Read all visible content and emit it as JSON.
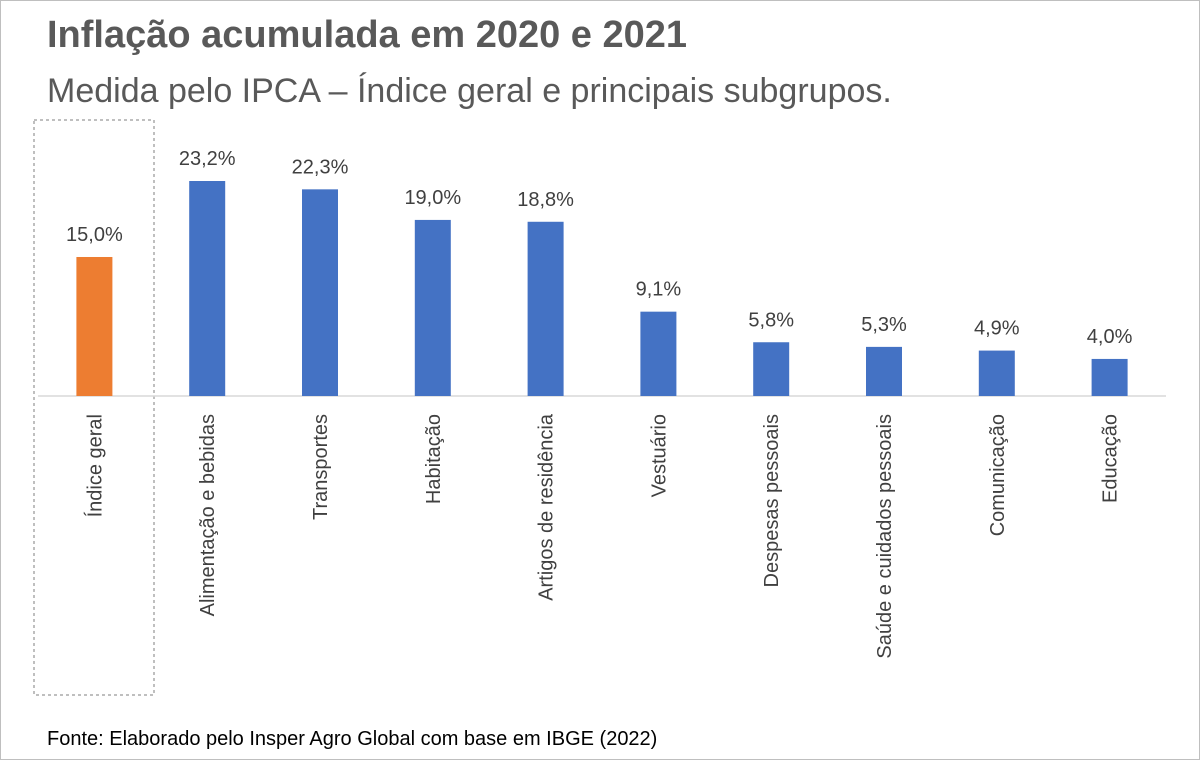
{
  "title": "Inflação acumulada em 2020 e 2021",
  "subtitle": "Medida pelo IPCA – Índice geral e principais subgrupos.",
  "source": "Fonte: Elaborado pelo Insper Agro Global com base em IBGE (2022)",
  "colors": {
    "highlight": "#ED7D31",
    "bar": "#4472C4",
    "axis": "#d9d9d9",
    "highlight_box": "#bfbfbf"
  },
  "chart_data": {
    "type": "bar",
    "categories": [
      "Índice geral",
      "Alimentação e bebidas",
      "Transportes",
      "Habitação",
      "Artigos de residência",
      "Vestuário",
      "Despesas pessoais",
      "Saúde e cuidados pessoais",
      "Comunicação",
      "Educação"
    ],
    "values": [
      15.0,
      23.2,
      22.3,
      19.0,
      18.8,
      9.1,
      5.8,
      5.3,
      4.9,
      4.0
    ],
    "value_labels": [
      "15,0%",
      "23,2%",
      "22,3%",
      "19,0%",
      "18,8%",
      "9,1%",
      "5,8%",
      "5,3%",
      "4,9%",
      "4,0%"
    ],
    "highlighted_category": "Índice geral",
    "ylim": [
      0,
      24
    ],
    "grid": false,
    "legend": "none",
    "xlabel": "",
    "ylabel": ""
  }
}
